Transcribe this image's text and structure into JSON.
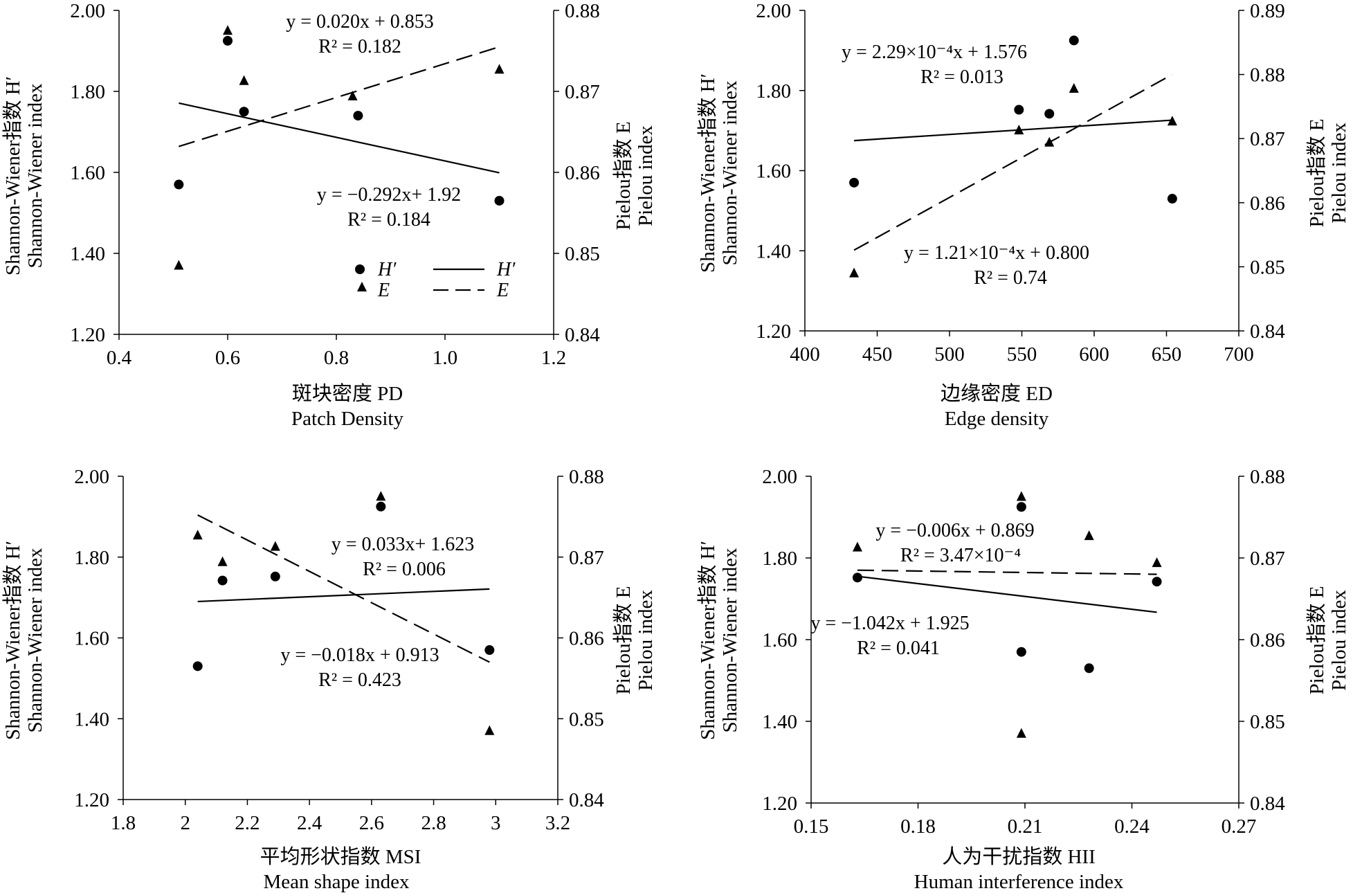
{
  "figure": {
    "panels": [
      {
        "xlabel_cn": "斑块密度 PD",
        "xlabel_en": "Patch Density",
        "ylabel_left_cn": "Shannon-Wiener指数 H′",
        "ylabel_left_en": "Shannon-Wiener index",
        "ylabel_right_cn": "Pielou指数 E",
        "ylabel_right_en": "Pielou index",
        "eq_E": "y = 0.020x + 0.853",
        "r2_E": "R² = 0.182",
        "eq_H": "y = −0.292x+ 1.92",
        "r2_H": "R² = 0.184",
        "legend": {
          "h_marker": "H′",
          "e_marker": "E",
          "h_line": "H′",
          "e_line": "E"
        }
      },
      {
        "xlabel_cn": "边缘密度 ED",
        "xlabel_en": "Edge density",
        "ylabel_left_cn": "Shannon-Wiener指数 H′",
        "ylabel_left_en": "Shannon-Wiener index",
        "ylabel_right_cn": "Pielou指数 E",
        "ylabel_right_en": "Pielou index",
        "eq_H": "y = 2.29×10⁻⁴x + 1.576",
        "r2_H": "R² = 0.013",
        "eq_E": "y = 1.21×10⁻⁴x + 0.800",
        "r2_E": "R² = 0.74"
      },
      {
        "xlabel_cn": "平均形状指数 MSI",
        "xlabel_en": "Mean shape index",
        "ylabel_left_cn": "Shannon-Wiener指数 H′",
        "ylabel_left_en": "Shannon-Wiener index",
        "ylabel_right_cn": "Pielou指数 E",
        "ylabel_right_en": "Pielou index",
        "eq_H": "y =  0.033x+ 1.623",
        "r2_H": "R² = 0.006",
        "eq_E": "y = −0.018x + 0.913",
        "r2_E": "R² =  0.423"
      },
      {
        "xlabel_cn": "人为干扰指数 HII",
        "xlabel_en": "Human interference index",
        "ylabel_left_cn": "Shannon-Wiener指数 H′",
        "ylabel_left_en": "Shannon-Wiener index",
        "ylabel_right_cn": "Pielou指数 E",
        "ylabel_right_en": "Pielou index",
        "eq_E": "y = −0.006x + 0.869",
        "r2_E": "R² = 3.47×10⁻⁴",
        "eq_H": "y = −1.042x + 1.925",
        "r2_H": "R² = 0.041"
      }
    ]
  },
  "chart_data": [
    {
      "type": "scatter",
      "xlim": [
        0.4,
        1.2
      ],
      "xticks": [
        "0.4",
        "0.6",
        "0.8",
        "1.0",
        "1.2"
      ],
      "ylim": [
        1.2,
        2.0
      ],
      "yticks": [
        "1.20",
        "1.40",
        "1.60",
        "1.80",
        "2.00"
      ],
      "y2lim": [
        0.84,
        0.88
      ],
      "y2ticks": [
        "0.84",
        "0.85",
        "0.86",
        "0.87",
        "0.88"
      ],
      "legend_position": "bottom-right",
      "series": [
        {
          "name": "H′",
          "axis": "left",
          "marker": "circle",
          "x": [
            0.51,
            0.6,
            0.63,
            0.84,
            1.1
          ],
          "y": [
            1.57,
            1.925,
            1.75,
            1.74,
            1.53
          ]
        },
        {
          "name": "E",
          "axis": "right",
          "marker": "triangle",
          "x": [
            0.51,
            0.6,
            0.63,
            0.83,
            1.1
          ],
          "y": [
            0.8485,
            0.8775,
            0.8713,
            0.8694,
            0.8727
          ]
        }
      ],
      "trendlines": [
        {
          "name": "H′",
          "axis": "left",
          "style": "solid",
          "x": [
            0.51,
            1.1
          ],
          "y": [
            1.771,
            1.599
          ]
        },
        {
          "name": "E",
          "axis": "right",
          "style": "dashed",
          "x": [
            0.51,
            1.1
          ],
          "y": [
            0.8632,
            0.8755
          ]
        }
      ]
    },
    {
      "type": "scatter",
      "xlim": [
        400,
        700
      ],
      "xticks": [
        "400",
        "450",
        "500",
        "550",
        "600",
        "650",
        "700"
      ],
      "ylim": [
        1.2,
        2.0
      ],
      "yticks": [
        "1.20",
        "1.40",
        "1.60",
        "1.80",
        "2.00"
      ],
      "y2lim": [
        0.84,
        0.89
      ],
      "y2ticks": [
        "0.84",
        "0.85",
        "0.86",
        "0.87",
        "0.88",
        "0.89"
      ],
      "series": [
        {
          "name": "H′",
          "axis": "left",
          "marker": "circle",
          "x": [
            434,
            548,
            569,
            586,
            654
          ],
          "y": [
            1.57,
            1.752,
            1.742,
            1.925,
            1.53
          ]
        },
        {
          "name": "E",
          "axis": "right",
          "marker": "triangle",
          "x": [
            434,
            548,
            569,
            586,
            654
          ],
          "y": [
            0.849,
            0.8713,
            0.8694,
            0.8778,
            0.8727
          ]
        }
      ],
      "trendlines": [
        {
          "name": "H′",
          "axis": "left",
          "style": "solid",
          "x": [
            434,
            654
          ],
          "y": [
            1.675,
            1.726
          ]
        },
        {
          "name": "E",
          "axis": "right",
          "style": "dashed",
          "x": [
            434,
            654
          ],
          "y": [
            0.8526,
            0.88
          ]
        }
      ]
    },
    {
      "type": "scatter",
      "xlim": [
        1.8,
        3.2
      ],
      "xticks": [
        "1.8",
        "2",
        "2.2",
        "2.4",
        "2.6",
        "2.8",
        "3",
        "3.2"
      ],
      "ylim": [
        1.2,
        2.0
      ],
      "yticks": [
        "1.20",
        "1.40",
        "1.60",
        "1.80",
        "2.00"
      ],
      "y2lim": [
        0.84,
        0.88
      ],
      "y2ticks": [
        "0.84",
        "0.85",
        "0.86",
        "0.87",
        "0.88"
      ],
      "series": [
        {
          "name": "H′",
          "axis": "left",
          "marker": "circle",
          "x": [
            2.04,
            2.12,
            2.29,
            2.63,
            2.98
          ],
          "y": [
            1.53,
            1.742,
            1.752,
            1.925,
            1.57
          ]
        },
        {
          "name": "E",
          "axis": "right",
          "marker": "triangle",
          "x": [
            2.04,
            2.12,
            2.29,
            2.63,
            2.98
          ],
          "y": [
            0.8727,
            0.8694,
            0.8713,
            0.8775,
            0.8485
          ]
        }
      ],
      "trendlines": [
        {
          "name": "H′",
          "axis": "left",
          "style": "solid",
          "x": [
            2.04,
            2.98
          ],
          "y": [
            1.69,
            1.721
          ]
        },
        {
          "name": "E",
          "axis": "right",
          "style": "dashed",
          "x": [
            2.04,
            2.98
          ],
          "y": [
            0.8752,
            0.857
          ]
        }
      ]
    },
    {
      "type": "scatter",
      "xlim": [
        0.15,
        0.27
      ],
      "xticks": [
        "0.15",
        "0.18",
        "0.21",
        "0.24",
        "0.27"
      ],
      "ylim": [
        1.2,
        2.0
      ],
      "yticks": [
        "1.20",
        "1.40",
        "1.60",
        "1.80",
        "2.00"
      ],
      "y2lim": [
        0.84,
        0.88
      ],
      "y2ticks": [
        "0.84",
        "0.85",
        "0.86",
        "0.87",
        "0.88"
      ],
      "series": [
        {
          "name": "H′",
          "axis": "left",
          "marker": "circle",
          "x": [
            0.163,
            0.209,
            0.209,
            0.228,
            0.247
          ],
          "y": [
            1.752,
            1.925,
            1.57,
            1.53,
            1.742
          ]
        },
        {
          "name": "E",
          "axis": "right",
          "marker": "triangle",
          "x": [
            0.163,
            0.209,
            0.209,
            0.228,
            0.247
          ],
          "y": [
            0.8713,
            0.8775,
            0.8485,
            0.8727,
            0.8694
          ]
        }
      ],
      "trendlines": [
        {
          "name": "H′",
          "axis": "left",
          "style": "solid",
          "x": [
            0.163,
            0.247
          ],
          "y": [
            1.755,
            1.667
          ]
        },
        {
          "name": "E",
          "axis": "right",
          "style": "dashed",
          "x": [
            0.163,
            0.247
          ],
          "y": [
            0.8685,
            0.868
          ]
        }
      ]
    }
  ]
}
